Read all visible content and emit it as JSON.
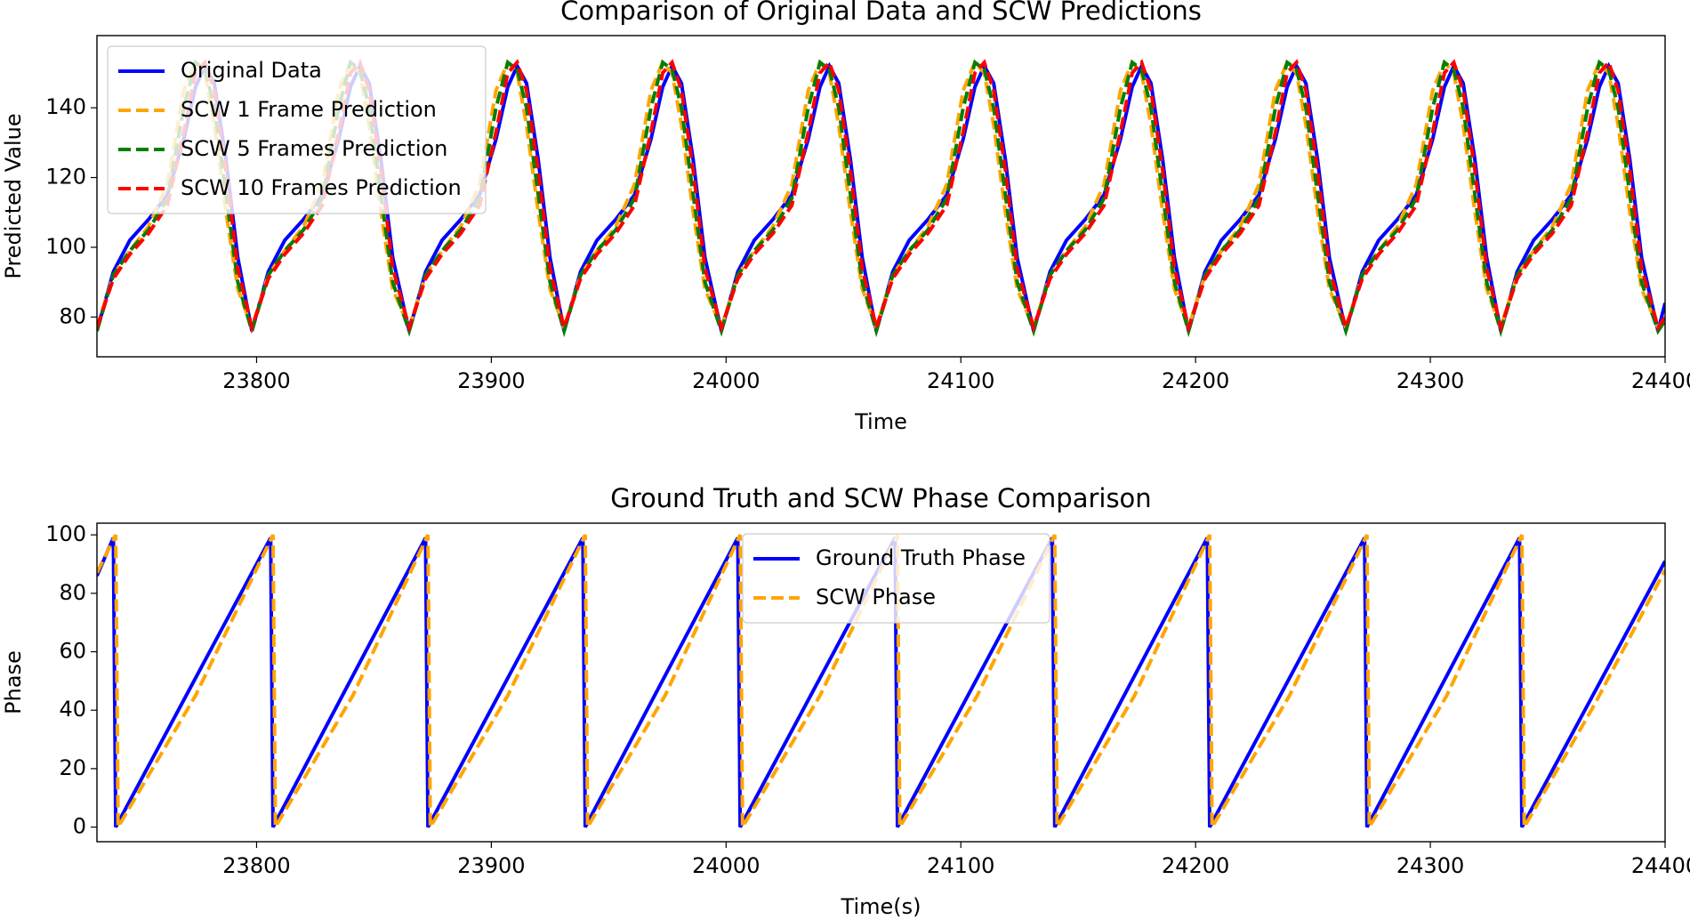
{
  "chart_data": [
    {
      "type": "line",
      "title": "Comparison of Original Data and SCW Predictions",
      "x_label": "Time",
      "y_label": "Predicted Value",
      "xlim": [
        23732,
        24400
      ],
      "xticks": [
        23800,
        23900,
        24000,
        24100,
        24200,
        24300,
        24400
      ],
      "ylim": [
        68.6,
        160.7
      ],
      "yticks": [
        80,
        100,
        120,
        140
      ],
      "legend": "upper left",
      "x": [
        23732,
        23739,
        23746,
        23754,
        23762,
        23769,
        23774,
        23778,
        23782,
        23787,
        23792,
        23798,
        23805,
        23812,
        23820,
        23828,
        23835,
        23840,
        23844,
        23848,
        23853,
        23858,
        23865,
        23872,
        23879,
        23887,
        23895,
        23902,
        23907,
        23911,
        23915,
        23920,
        23925,
        23931,
        23938,
        23945,
        23953,
        23961,
        23968,
        23973,
        23977,
        23981,
        23986,
        23991,
        23998,
        24005,
        24012,
        24020,
        24028,
        24035,
        24040,
        24044,
        24048,
        24053,
        24058,
        24064,
        24071,
        24078,
        24086,
        24094,
        24101,
        24106,
        24110,
        24114,
        24119,
        24124,
        24131,
        24138,
        24145,
        24153,
        24161,
        24168,
        24173,
        24177,
        24181,
        24186,
        24191,
        24197,
        24204,
        24211,
        24219,
        24227,
        24234,
        24239,
        24243,
        24247,
        24252,
        24257,
        24264,
        24271,
        24278,
        24286,
        24294,
        24301,
        24306,
        24310,
        24314,
        24319,
        24324,
        24330,
        24337,
        24344,
        24352,
        24360,
        24367,
        24372,
        24376,
        24380,
        24385,
        24390,
        24397,
        24400
      ],
      "series": [
        {
          "name": "Original Data",
          "color": "#0000ff",
          "style": "solid",
          "values": [
            76,
            93,
            102,
            108,
            115,
            131,
            146,
            152,
            147,
            125,
            97,
            76,
            93,
            102,
            108,
            115,
            131,
            146,
            152,
            147,
            125,
            97,
            76,
            93,
            102,
            108,
            115,
            131,
            146,
            152,
            147,
            125,
            97,
            76,
            93,
            102,
            108,
            115,
            131,
            146,
            152,
            147,
            125,
            97,
            76,
            93,
            102,
            108,
            115,
            131,
            146,
            152,
            147,
            125,
            97,
            76,
            93,
            102,
            108,
            115,
            131,
            146,
            152,
            147,
            125,
            97,
            76,
            93,
            102,
            108,
            115,
            131,
            146,
            152,
            147,
            125,
            97,
            76,
            93,
            102,
            108,
            115,
            131,
            146,
            152,
            147,
            125,
            97,
            76,
            93,
            102,
            108,
            115,
            131,
            146,
            152,
            147,
            125,
            97,
            76,
            93,
            102,
            108,
            115,
            131,
            146,
            152,
            147,
            125,
            97,
            76,
            84
          ]
        },
        {
          "name": "SCW 1 Frame Prediction",
          "color": "#ffa500",
          "style": "dashed",
          "values": [
            77,
            92,
            99,
            106,
            118,
            145,
            153,
            150,
            135,
            110,
            88,
            77,
            92,
            99,
            106,
            118,
            145,
            153,
            150,
            135,
            110,
            88,
            77,
            92,
            99,
            106,
            118,
            145,
            153,
            150,
            135,
            110,
            88,
            77,
            92,
            99,
            106,
            118,
            145,
            153,
            150,
            135,
            110,
            88,
            77,
            92,
            99,
            106,
            118,
            145,
            153,
            150,
            135,
            110,
            88,
            77,
            92,
            99,
            106,
            118,
            145,
            153,
            150,
            135,
            110,
            88,
            77,
            92,
            99,
            106,
            118,
            145,
            153,
            150,
            135,
            110,
            88,
            77,
            92,
            99,
            106,
            118,
            145,
            153,
            150,
            135,
            110,
            88,
            77,
            92,
            99,
            106,
            118,
            145,
            153,
            150,
            135,
            110,
            88,
            77,
            92,
            99,
            106,
            118,
            145,
            153,
            150,
            135,
            110,
            88,
            77,
            80
          ]
        },
        {
          "name": "SCW 5 Frames Prediction",
          "color": "#008000",
          "style": "dashed",
          "values": [
            76,
            92,
            99,
            105,
            114,
            140,
            153,
            151,
            140,
            115,
            90,
            76,
            92,
            99,
            105,
            114,
            140,
            153,
            151,
            140,
            115,
            90,
            76,
            92,
            99,
            105,
            114,
            140,
            153,
            151,
            140,
            115,
            90,
            76,
            92,
            99,
            105,
            114,
            140,
            153,
            151,
            140,
            115,
            90,
            76,
            92,
            99,
            105,
            114,
            140,
            153,
            151,
            140,
            115,
            90,
            76,
            92,
            99,
            105,
            114,
            140,
            153,
            151,
            140,
            115,
            90,
            76,
            92,
            99,
            105,
            114,
            140,
            153,
            151,
            140,
            115,
            90,
            76,
            92,
            99,
            105,
            114,
            140,
            153,
            151,
            140,
            115,
            90,
            76,
            92,
            99,
            105,
            114,
            140,
            153,
            151,
            140,
            115,
            90,
            76,
            92,
            99,
            105,
            114,
            140,
            153,
            151,
            140,
            115,
            90,
            76,
            79
          ]
        },
        {
          "name": "SCW 10 Frames Prediction",
          "color": "#ff0000",
          "style": "dashed",
          "values": [
            77,
            91,
            98,
            104,
            112,
            133,
            150,
            153,
            145,
            122,
            94,
            77,
            91,
            98,
            104,
            112,
            133,
            150,
            153,
            145,
            122,
            94,
            77,
            91,
            98,
            104,
            112,
            133,
            150,
            153,
            145,
            122,
            94,
            77,
            91,
            98,
            104,
            112,
            133,
            150,
            153,
            145,
            122,
            94,
            77,
            91,
            98,
            104,
            112,
            133,
            150,
            153,
            145,
            122,
            94,
            77,
            91,
            98,
            104,
            112,
            133,
            150,
            153,
            145,
            122,
            94,
            77,
            91,
            98,
            104,
            112,
            133,
            150,
            153,
            145,
            122,
            94,
            77,
            91,
            98,
            104,
            112,
            133,
            150,
            153,
            145,
            122,
            94,
            77,
            91,
            98,
            104,
            112,
            133,
            150,
            153,
            145,
            122,
            94,
            77,
            91,
            98,
            104,
            112,
            133,
            150,
            153,
            145,
            122,
            94,
            77,
            80
          ]
        }
      ]
    },
    {
      "type": "line",
      "title": "Ground Truth and SCW Phase Comparison",
      "x_label": "Time(s)",
      "y_label": "Phase",
      "xlim": [
        23732,
        24400
      ],
      "xticks": [
        23800,
        23900,
        24000,
        24100,
        24200,
        24300,
        24400
      ],
      "ylim": [
        -5,
        104
      ],
      "yticks": [
        0,
        20,
        40,
        60,
        80,
        100
      ],
      "legend": "upper center",
      "series": [
        {
          "name": "Ground Truth Phase",
          "color": "#0000ff",
          "style": "solid",
          "x": [
            23732,
            23739,
            23740,
            23806,
            23807,
            23872,
            23873,
            23939,
            23940,
            24005,
            24006,
            24072,
            24073,
            24139,
            24140,
            24205,
            24206,
            24272,
            24273,
            24338,
            24339,
            24400
          ],
          "values": [
            86,
            99,
            0,
            99,
            0,
            99,
            0,
            99,
            0,
            99,
            0,
            99,
            0,
            99,
            0,
            99,
            0,
            99,
            0,
            99,
            0,
            91
          ]
        },
        {
          "name": "SCW Phase",
          "color": "#ffa500",
          "style": "dashed",
          "x": [
            23732,
            23740,
            23741,
            23774,
            23807,
            23808,
            23841,
            23873,
            23874,
            23907,
            23940,
            23941,
            23974,
            24006,
            24007,
            24040,
            24073,
            24074,
            24107,
            24140,
            24141,
            24174,
            24206,
            24207,
            24240,
            24273,
            24274,
            24307,
            24339,
            24340,
            24370,
            24400
          ],
          "values": [
            87,
            100,
            0,
            45,
            100,
            0,
            45,
            100,
            0,
            45,
            100,
            0,
            45,
            100,
            0,
            45,
            100,
            0,
            45,
            100,
            0,
            45,
            100,
            0,
            45,
            100,
            0,
            45,
            100,
            0,
            42,
            88
          ]
        }
      ]
    }
  ]
}
